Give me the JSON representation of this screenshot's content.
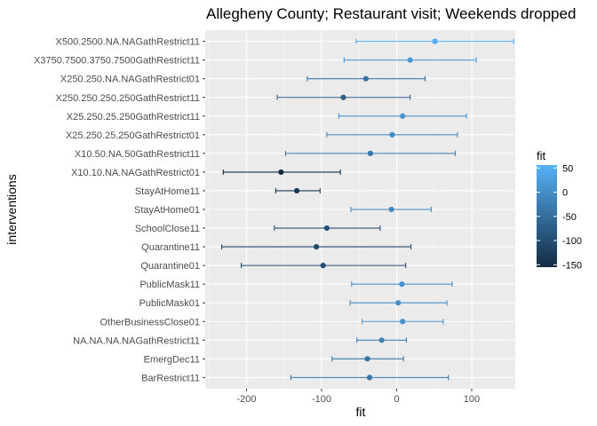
{
  "chart_data": {
    "type": "scatter",
    "title": "Allegheny County; Restaurant visit; Weekends dropped",
    "xlabel": "fit",
    "ylabel": "interventions",
    "xlim": [
      -255,
      158
    ],
    "x_ticks": [
      -200,
      -100,
      0,
      100
    ],
    "x_tick_labels": [
      "-200",
      "-100",
      "0",
      "100"
    ],
    "grid": true,
    "points": [
      {
        "label": "X500.2500.NA.NAGathRestrict11",
        "fit": 51,
        "low": -54,
        "high": 156
      },
      {
        "label": "X3750.7500.3750.7500GathRestrict11",
        "fit": 18,
        "low": -70,
        "high": 106
      },
      {
        "label": "X250.250.NA.NAGathRestrict01",
        "fit": -41,
        "low": -119,
        "high": 38
      },
      {
        "label": "X250.250.250.250GathRestrict11",
        "fit": -71,
        "low": -159,
        "high": 18
      },
      {
        "label": "X25.250.25.250GathRestrict11",
        "fit": 8,
        "low": -77,
        "high": 93
      },
      {
        "label": "X25.250.25.250GathRestrict01",
        "fit": -6,
        "low": -93,
        "high": 81
      },
      {
        "label": "X10.50.NA.50GathRestrict11",
        "fit": -35,
        "low": -148,
        "high": 78
      },
      {
        "label": "X10.10.NA.NAGathRestrict01",
        "fit": -154,
        "low": -231,
        "high": -75
      },
      {
        "label": "StayAtHome11",
        "fit": -133,
        "low": -161,
        "high": -102
      },
      {
        "label": "StayAtHome01",
        "fit": -7,
        "low": -61,
        "high": 46
      },
      {
        "label": "SchoolClose11",
        "fit": -93,
        "low": -163,
        "high": -22
      },
      {
        "label": "Quarantine11",
        "fit": -107,
        "low": -233,
        "high": 19
      },
      {
        "label": "Quarantine01",
        "fit": -98,
        "low": -207,
        "high": 12
      },
      {
        "label": "PublicMask11",
        "fit": 7,
        "low": -60,
        "high": 74
      },
      {
        "label": "PublicMask01",
        "fit": 2,
        "low": -62,
        "high": 67
      },
      {
        "label": "OtherBusinessClose01",
        "fit": 8,
        "low": -46,
        "high": 62
      },
      {
        "label": "NA.NA.NA.NAGathRestrict11",
        "fit": -20,
        "low": -53,
        "high": 13
      },
      {
        "label": "EmergDec11",
        "fit": -39,
        "low": -86,
        "high": 9
      },
      {
        "label": "BarRestrict11",
        "fit": -36,
        "low": -141,
        "high": 69
      }
    ],
    "legend": {
      "title": "fit",
      "placement": "right",
      "ticks": [
        50,
        0,
        -50,
        -100,
        -150
      ],
      "tick_labels": [
        "50",
        "0",
        "-50",
        "-100",
        "-150"
      ],
      "range": [
        -155,
        56
      ],
      "color_low": "#132b43",
      "color_high": "#56b1f7"
    }
  }
}
